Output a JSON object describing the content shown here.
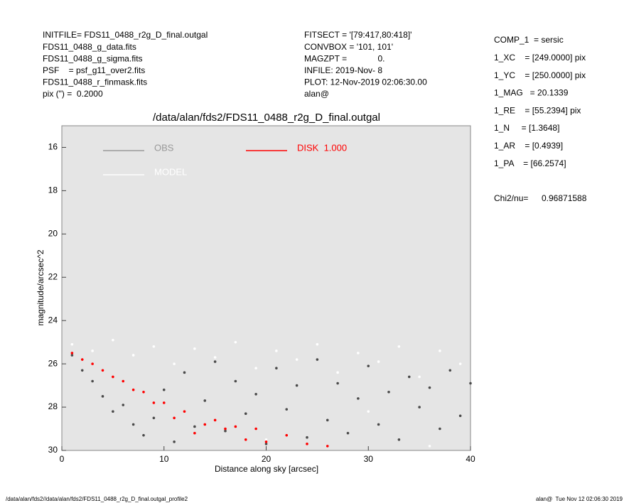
{
  "header": {
    "left": [
      "INITFILE= FDS11_0488_r2g_D_final.outgal",
      "FDS11_0488_g_data.fits",
      "FDS11_0488_g_sigma.fits",
      "PSF    = psf_g11_over2.fits",
      "FDS11_0488_r_finmask.fits",
      "pix (\") =  0.2000"
    ],
    "middle": [
      "FITSECT = '[79:417,80:418]'",
      "CONVBOX = '101, 101'",
      "MAGZPT =             0.",
      "INFILE: 2019-Nov- 8",
      "PLOT: 12-Nov-2019 02:06:30.00",
      "alan@"
    ],
    "right": [
      "COMP_1  = sersic",
      "1_XC    = [249.0000] pix",
      "1_YC    = [250.0000] pix",
      "1_MAG   = 20.1339",
      "1_RE    = [55.2394] pix",
      "1_N     = [1.3648]",
      "1_AR    = [0.4939]",
      "1_PA    = [66.2574]"
    ],
    "chi2_label": "Chi2/nu=",
    "chi2_value": "0.96871588"
  },
  "footer": {
    "left": "/data/alan/fds2//data/alan/fds2/FDS11_0488_r2g_D_final.outgal_profile2",
    "right": "alan@  Tue Nov 12 02:06:30 2019"
  },
  "chart_data": {
    "type": "scatter",
    "title": "/data/alan/fds2/FDS11_0488_r2g_D_final.outgal",
    "xlabel": "Distance along sky [arcsec]",
    "ylabel": "magnitude/arcsec^2",
    "xlim": [
      0,
      40
    ],
    "xticks": [
      0,
      10,
      20,
      30,
      40
    ],
    "ylim": [
      30,
      15
    ],
    "yticks": [
      16,
      18,
      20,
      22,
      24,
      26,
      28,
      30
    ],
    "series": [
      {
        "name": "OBS",
        "color": "#4a4a4a",
        "legend_color": "#999999",
        "x": [
          1,
          2,
          3,
          4,
          5,
          6,
          7,
          8,
          9,
          10,
          11,
          12,
          13,
          14,
          15,
          16,
          17,
          18,
          19,
          20,
          21,
          22,
          23,
          24,
          25,
          26,
          27,
          28,
          29,
          30,
          31,
          32,
          33,
          34,
          35,
          36,
          37,
          38,
          39,
          40
        ],
        "y": [
          25.6,
          26.3,
          26.8,
          27.5,
          28.2,
          27.9,
          28.8,
          29.3,
          28.5,
          27.2,
          29.6,
          26.4,
          28.9,
          27.7,
          25.9,
          29.1,
          26.8,
          28.3,
          27.4,
          29.7,
          26.2,
          28.1,
          27.0,
          29.4,
          25.8,
          28.6,
          26.9,
          29.2,
          27.6,
          26.1,
          28.8,
          27.3,
          29.5,
          26.6,
          28.0,
          27.1,
          29.0,
          26.3,
          28.4,
          26.9
        ]
      },
      {
        "name": "MODEL",
        "color": "#ffffff",
        "legend_color": "#ffffff",
        "x": [
          1,
          3,
          5,
          7,
          9,
          11,
          13,
          15,
          17,
          19,
          21,
          23,
          25,
          27,
          29,
          31,
          33,
          35,
          37,
          39,
          20,
          30,
          36
        ],
        "y": [
          25.1,
          25.4,
          24.9,
          25.6,
          25.2,
          26.0,
          25.3,
          25.7,
          25.0,
          26.2,
          25.4,
          25.8,
          25.1,
          26.4,
          25.5,
          25.9,
          25.2,
          26.6,
          25.4,
          26.0,
          29.5,
          28.2,
          29.8
        ]
      },
      {
        "name": "DISK  1.000",
        "color": "#ff0000",
        "legend_color": "#ff0000",
        "x": [
          1,
          2,
          3,
          4,
          5,
          6,
          7,
          8,
          9,
          10,
          11,
          12,
          13,
          14,
          15,
          16,
          17,
          18,
          19,
          20,
          22,
          24,
          26
        ],
        "y": [
          25.5,
          25.8,
          26.0,
          26.3,
          26.6,
          26.8,
          27.2,
          27.3,
          27.8,
          27.8,
          28.5,
          28.2,
          29.2,
          28.8,
          28.6,
          29.0,
          28.9,
          29.5,
          29.0,
          29.6,
          29.3,
          29.7,
          29.8
        ]
      }
    ]
  }
}
